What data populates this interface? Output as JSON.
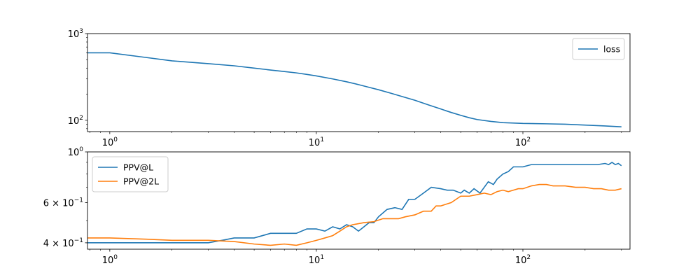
{
  "chart_data": [
    {
      "type": "line",
      "title": "",
      "xlabel": "",
      "ylabel": "",
      "xscale": "log",
      "yscale": "log",
      "xlim": [
        0.78,
        330
      ],
      "ylim": [
        74,
        1000
      ],
      "x_ticks": [
        {
          "value": 1,
          "base": "10",
          "exp": "0"
        },
        {
          "value": 10,
          "base": "10",
          "exp": "1"
        },
        {
          "value": 100,
          "base": "10",
          "exp": "2"
        }
      ],
      "y_ticks": [
        {
          "value": 100,
          "base": "10",
          "exp": "2"
        },
        {
          "value": 1000,
          "base": "10",
          "exp": "3"
        }
      ],
      "grid": false,
      "legend_position": "top-right",
      "series": [
        {
          "name": "loss",
          "color": "#1f77b4",
          "points": [
            [
              0.78,
              600
            ],
            [
              1,
              600
            ],
            [
              1.5,
              530
            ],
            [
              2,
              485
            ],
            [
              3,
              450
            ],
            [
              4,
              425
            ],
            [
              5,
              400
            ],
            [
              6,
              380
            ],
            [
              7,
              365
            ],
            [
              8,
              352
            ],
            [
              9,
              338
            ],
            [
              10,
              325
            ],
            [
              12,
              300
            ],
            [
              14,
              278
            ],
            [
              16,
              258
            ],
            [
              18,
              240
            ],
            [
              20,
              225
            ],
            [
              23,
              205
            ],
            [
              26,
              188
            ],
            [
              30,
              170
            ],
            [
              35,
              150
            ],
            [
              40,
              135
            ],
            [
              45,
              123
            ],
            [
              50,
              114
            ],
            [
              55,
              107
            ],
            [
              60,
              102
            ],
            [
              70,
              97
            ],
            [
              80,
              94
            ],
            [
              100,
              92
            ],
            [
              130,
              91
            ],
            [
              160,
              90
            ],
            [
              200,
              88
            ],
            [
              250,
              86
            ],
            [
              300,
              84
            ]
          ]
        }
      ]
    },
    {
      "type": "line",
      "title": "",
      "xlabel": "",
      "ylabel": "",
      "xscale": "log",
      "yscale": "log",
      "xlim": [
        0.78,
        330
      ],
      "ylim": [
        0.375,
        1.0
      ],
      "x_ticks": [
        {
          "value": 1,
          "base": "10",
          "exp": "0"
        },
        {
          "value": 10,
          "base": "10",
          "exp": "1"
        },
        {
          "value": 100,
          "base": "10",
          "exp": "2"
        }
      ],
      "y_ticks": [
        {
          "value": 0.4,
          "base": "4 × 10",
          "exp": "−1"
        },
        {
          "value": 0.6,
          "base": "6 × 10",
          "exp": "−1"
        },
        {
          "value": 1.0,
          "base": "10",
          "exp": "0"
        }
      ],
      "grid": false,
      "legend_position": "top-left",
      "series": [
        {
          "name": "PPV@L",
          "color": "#1f77b4",
          "points": [
            [
              0.78,
              0.4
            ],
            [
              1,
              0.4
            ],
            [
              2,
              0.4
            ],
            [
              3,
              0.4
            ],
            [
              3.5,
              0.41
            ],
            [
              4,
              0.42
            ],
            [
              5,
              0.42
            ],
            [
              6,
              0.44
            ],
            [
              7,
              0.44
            ],
            [
              8,
              0.44
            ],
            [
              9,
              0.46
            ],
            [
              10,
              0.46
            ],
            [
              11,
              0.45
            ],
            [
              12,
              0.47
            ],
            [
              13,
              0.46
            ],
            [
              14,
              0.48
            ],
            [
              15,
              0.47
            ],
            [
              16,
              0.45
            ],
            [
              17,
              0.47
            ],
            [
              18,
              0.49
            ],
            [
              19,
              0.49
            ],
            [
              20,
              0.52
            ],
            [
              22,
              0.56
            ],
            [
              24,
              0.57
            ],
            [
              26,
              0.56
            ],
            [
              28,
              0.62
            ],
            [
              30,
              0.62
            ],
            [
              33,
              0.66
            ],
            [
              36,
              0.7
            ],
            [
              40,
              0.69
            ],
            [
              43,
              0.68
            ],
            [
              46,
              0.68
            ],
            [
              50,
              0.66
            ],
            [
              52,
              0.68
            ],
            [
              55,
              0.66
            ],
            [
              58,
              0.69
            ],
            [
              62,
              0.66
            ],
            [
              65,
              0.7
            ],
            [
              68,
              0.74
            ],
            [
              72,
              0.72
            ],
            [
              75,
              0.76
            ],
            [
              80,
              0.8
            ],
            [
              85,
              0.82
            ],
            [
              90,
              0.86
            ],
            [
              95,
              0.86
            ],
            [
              100,
              0.86
            ],
            [
              110,
              0.88
            ],
            [
              130,
              0.88
            ],
            [
              160,
              0.88
            ],
            [
              200,
              0.88
            ],
            [
              230,
              0.88
            ],
            [
              250,
              0.89
            ],
            [
              260,
              0.88
            ],
            [
              270,
              0.9
            ],
            [
              280,
              0.88
            ],
            [
              290,
              0.89
            ],
            [
              300,
              0.87
            ]
          ]
        },
        {
          "name": "PPV@2L",
          "color": "#ff7f0e",
          "points": [
            [
              0.78,
              0.42
            ],
            [
              1,
              0.42
            ],
            [
              1.5,
              0.415
            ],
            [
              2,
              0.41
            ],
            [
              3,
              0.41
            ],
            [
              4,
              0.405
            ],
            [
              5,
              0.395
            ],
            [
              6,
              0.39
            ],
            [
              7,
              0.395
            ],
            [
              8,
              0.39
            ],
            [
              9,
              0.4
            ],
            [
              10,
              0.41
            ],
            [
              11,
              0.42
            ],
            [
              12,
              0.43
            ],
            [
              13,
              0.45
            ],
            [
              14,
              0.47
            ],
            [
              15,
              0.48
            ],
            [
              17,
              0.49
            ],
            [
              19,
              0.495
            ],
            [
              21,
              0.51
            ],
            [
              23,
              0.51
            ],
            [
              25,
              0.51
            ],
            [
              27,
              0.52
            ],
            [
              30,
              0.53
            ],
            [
              33,
              0.55
            ],
            [
              36,
              0.55
            ],
            [
              38,
              0.58
            ],
            [
              40,
              0.58
            ],
            [
              45,
              0.6
            ],
            [
              50,
              0.64
            ],
            [
              55,
              0.64
            ],
            [
              60,
              0.65
            ],
            [
              65,
              0.66
            ],
            [
              70,
              0.65
            ],
            [
              75,
              0.67
            ],
            [
              80,
              0.68
            ],
            [
              85,
              0.67
            ],
            [
              90,
              0.68
            ],
            [
              95,
              0.69
            ],
            [
              100,
              0.69
            ],
            [
              110,
              0.71
            ],
            [
              120,
              0.72
            ],
            [
              130,
              0.72
            ],
            [
              140,
              0.71
            ],
            [
              160,
              0.71
            ],
            [
              180,
              0.7
            ],
            [
              200,
              0.7
            ],
            [
              220,
              0.69
            ],
            [
              240,
              0.69
            ],
            [
              260,
              0.68
            ],
            [
              280,
              0.68
            ],
            [
              300,
              0.69
            ]
          ]
        }
      ]
    }
  ]
}
